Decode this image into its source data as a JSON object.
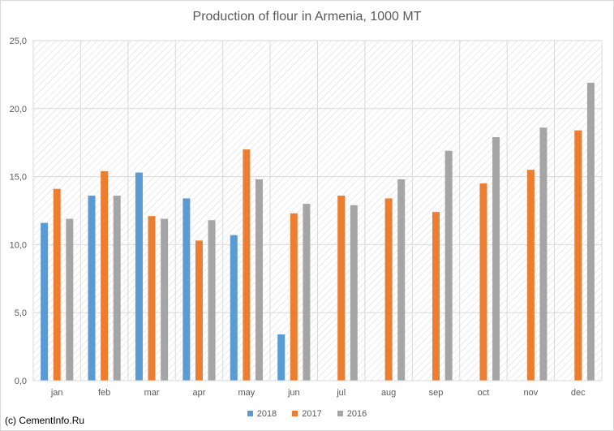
{
  "chart_data": {
    "type": "bar",
    "title": "Production of flour in Armenia, 1000 MT",
    "xlabel": "",
    "ylabel": "",
    "categories": [
      "jan",
      "feb",
      "mar",
      "apr",
      "may",
      "jun",
      "jul",
      "aug",
      "sep",
      "oct",
      "nov",
      "dec"
    ],
    "ylim": [
      0,
      25
    ],
    "yticks": [
      0,
      5,
      10,
      15,
      20,
      25
    ],
    "ytick_labels": [
      "0,0",
      "5,0",
      "10,0",
      "15,0",
      "20,0",
      "25,0"
    ],
    "grid": true,
    "legend_position": "bottom",
    "series": [
      {
        "name": "2018",
        "color": "#5b9bd5",
        "values": [
          11.6,
          13.6,
          15.3,
          13.4,
          10.7,
          3.4,
          null,
          null,
          null,
          null,
          null,
          null
        ]
      },
      {
        "name": "2017",
        "color": "#ed7d31",
        "values": [
          14.1,
          15.4,
          12.1,
          10.3,
          17.0,
          12.3,
          13.6,
          13.4,
          12.4,
          14.5,
          15.5,
          18.4
        ]
      },
      {
        "name": "2016",
        "color": "#a5a5a5",
        "values": [
          11.9,
          13.6,
          11.9,
          11.8,
          14.8,
          13.0,
          12.9,
          14.8,
          16.9,
          17.9,
          18.6,
          21.9
        ]
      }
    ]
  },
  "watermark": "(c) CementInfo.Ru"
}
